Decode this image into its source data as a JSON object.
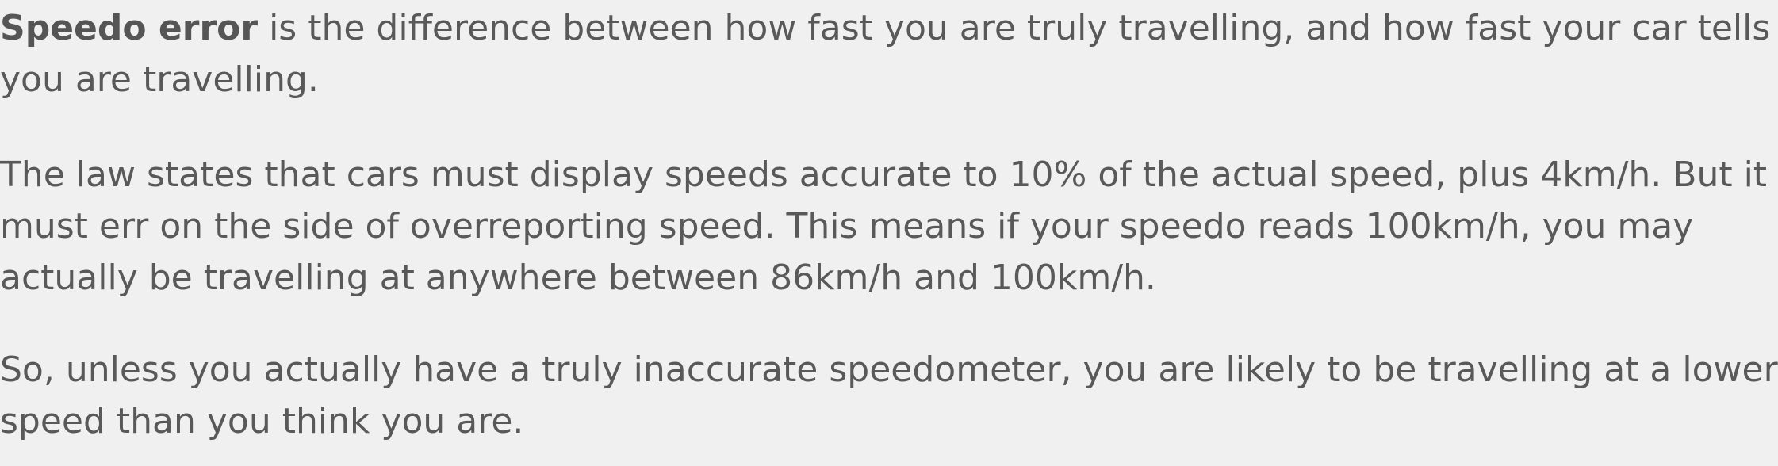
{
  "article": {
    "paragraph1": {
      "term": "Speedo error",
      "line1_rest": " is the difference between how fast you are truly travelling, and how fast your car tells",
      "line2": "you are travelling."
    },
    "paragraph2": {
      "line1": "The law states that cars must display speeds accurate to 10% of the actual speed, plus 4km/h. But it",
      "line2": "must err on the side of overreporting speed. This means if your speedo reads 100km/h, you may",
      "line3": "actually be travelling at anywhere between 86km/h and 100km/h."
    },
    "paragraph3": {
      "line1": "So, unless you actually have a truly inaccurate speedometer, you are likely to be travelling at a lower",
      "line2": "speed than you think you are."
    }
  }
}
